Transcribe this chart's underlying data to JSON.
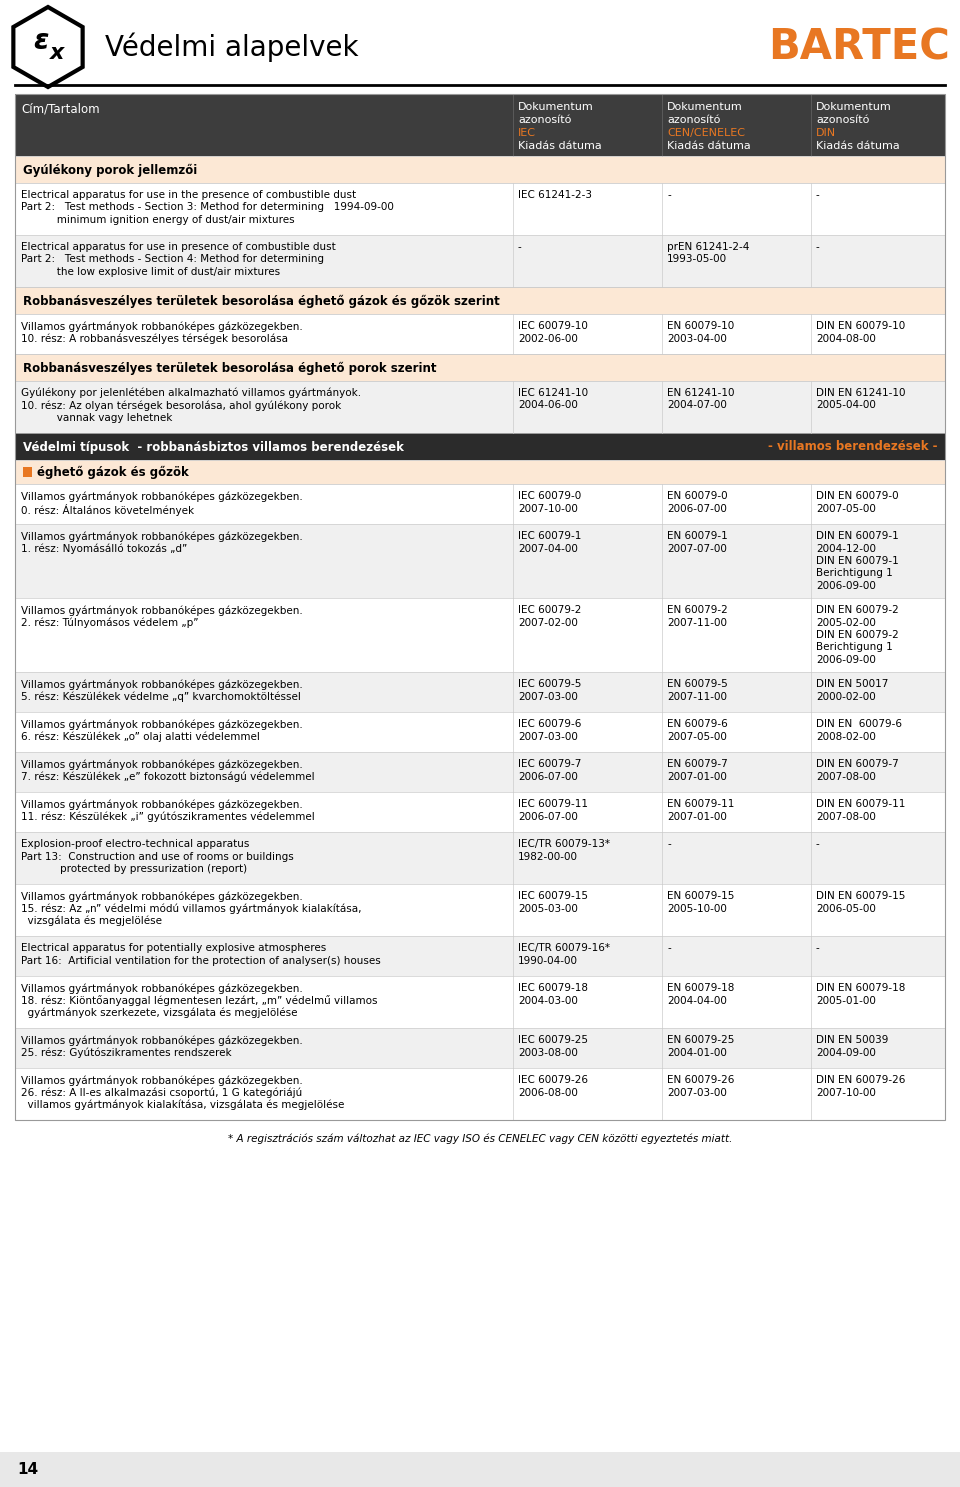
{
  "title_text": "Védelmi alapelvek",
  "bartec_text": "BARTEC",
  "bg_color": "#ffffff",
  "header_bg": "#3d3d3d",
  "section_bg": "#fce8d5",
  "dark_section_bg": "#2b2b2b",
  "orange_color": "#e87722",
  "border_color": "#cccccc",
  "table_header_row": {
    "col1": "Cím/Tartalom",
    "col2": "Dokumentum\nazonosító\nIEC\nKiadás dátuma",
    "col3": "Dokumentum\nazonosító\nCEN/CENELEC\nKiadás dátuma",
    "col4": "Dokumentum\nazonosító\nDIN\nKiadás dátuma"
  },
  "rows": [
    {
      "type": "section",
      "text": "Gyúlékony porok jellemzői"
    },
    {
      "type": "data",
      "col1": "Electrical apparatus for use in the presence of combustible dust\nPart 2:   Test methods - Section 3: Method for determining   1994-09-00\n           minimum ignition energy of dust/air mixtures",
      "col2": "IEC 61241-2-3",
      "col3": "-",
      "col4": "-",
      "bg": "#ffffff"
    },
    {
      "type": "data",
      "col1": "Electrical apparatus for use in presence of combustible dust\nPart 2:   Test methods - Section 4: Method for determining\n           the low explosive limit of dust/air mixtures",
      "col2": "-",
      "col3": "prEN 61241-2-4\n1993-05-00",
      "col4": "-",
      "bg": "#f0f0f0"
    },
    {
      "type": "section",
      "text": "Robbanásveszélyes területek besorolása éghető gázok és gőzök szerint"
    },
    {
      "type": "data",
      "col1": "Villamos gyártmányok robbanóképes gázközegekben.\n10. rész: A robbanásveszélyes térségek besorolása",
      "col2": "IEC 60079-10\n2002-06-00",
      "col3": "EN 60079-10\n2003-04-00",
      "col4": "DIN EN 60079-10\n2004-08-00",
      "bg": "#ffffff"
    },
    {
      "type": "section",
      "text": "Robbanásveszélyes területek besorolása éghető porok szerint"
    },
    {
      "type": "data",
      "col1": "Gyúlékony por jelenlétében alkalmazható villamos gyártmányok.\n10. rész: Az olyan térségek besorolása, ahol gyúlékony porok\n           vannak vagy lehetnek",
      "col2": "IEC 61241-10\n2004-06-00",
      "col3": "EN 61241-10\n2004-07-00",
      "col4": "DIN EN 61241-10\n2005-04-00",
      "bg": "#f0f0f0"
    },
    {
      "type": "dark_section",
      "text_left": "Védelmi típusok  - robbanásbiztos villamos berendezések",
      "text_right": "- villamos berendezések -"
    },
    {
      "type": "orange_section",
      "text": "éghető gázok és gőzök"
    },
    {
      "type": "data",
      "col1": "Villamos gyártmányok robbanóképes gázközegekben.\n0. rész: Általános követelmények",
      "col2": "IEC 60079-0\n2007-10-00",
      "col3": "EN 60079-0\n2006-07-00",
      "col4": "DIN EN 60079-0\n2007-05-00",
      "bg": "#ffffff"
    },
    {
      "type": "data",
      "col1": "Villamos gyártmányok robbanóképes gázközegekben.\n1. rész: Nyomásálló tokozás „d”",
      "col2": "IEC 60079-1\n2007-04-00",
      "col3": "EN 60079-1\n2007-07-00",
      "col4": "DIN EN 60079-1\n2004-12-00\nDIN EN 60079-1\nBerichtigung 1\n2006-09-00",
      "bg": "#f0f0f0"
    },
    {
      "type": "data",
      "col1": "Villamos gyártmányok robbanóképes gázközegekben.\n2. rész: Túlnyomásos védelem „p”",
      "col2": "IEC 60079-2\n2007-02-00",
      "col3": "EN 60079-2\n2007-11-00",
      "col4": "DIN EN 60079-2\n2005-02-00\nDIN EN 60079-2\nBerichtigung 1\n2006-09-00",
      "bg": "#ffffff"
    },
    {
      "type": "data",
      "col1": "Villamos gyártmányok robbanóképes gázközegekben.\n5. rész: Készülékek védelme „q” kvarchomoktöltéssel",
      "col2": "IEC 60079-5\n2007-03-00",
      "col3": "EN 60079-5\n2007-11-00",
      "col4": "DIN EN 50017\n2000-02-00",
      "bg": "#f0f0f0"
    },
    {
      "type": "data",
      "col1": "Villamos gyártmányok robbanóképes gázközegekben.\n6. rész: Készülékek „o” olaj alatti védelemmel",
      "col2": "IEC 60079-6\n2007-03-00",
      "col3": "EN 60079-6\n2007-05-00",
      "col4": "DIN EN  60079-6\n2008-02-00",
      "bg": "#ffffff"
    },
    {
      "type": "data",
      "col1": "Villamos gyártmányok robbanóképes gázközegekben.\n7. rész: Készülékek „e” fokozott biztonságú védelemmel",
      "col2": "IEC 60079-7\n2006-07-00",
      "col3": "EN 60079-7\n2007-01-00",
      "col4": "DIN EN 60079-7\n2007-08-00",
      "bg": "#f0f0f0"
    },
    {
      "type": "data",
      "col1": "Villamos gyártmányok robbanóképes gázközegekben.\n11. rész: Készülékek „i” gyútószikramentes védelemmel",
      "col2": "IEC 60079-11\n2006-07-00",
      "col3": "EN 60079-11\n2007-01-00",
      "col4": "DIN EN 60079-11\n2007-08-00",
      "bg": "#ffffff"
    },
    {
      "type": "data",
      "col1": "Explosion-proof electro-technical apparatus\nPart 13:  Construction and use of rooms or buildings\n            protected by pressurization (report)",
      "col2": "IEC/TR 60079-13*\n1982-00-00",
      "col3": "-",
      "col4": "-",
      "bg": "#f0f0f0"
    },
    {
      "type": "data",
      "col1": "Villamos gyártmányok robbanóképes gázközegekben.\n15. rész: Az „n” védelmi módú villamos gyártmányok kialakítása,\n  vizsgálata és megjelölése",
      "col2": "IEC 60079-15\n2005-03-00",
      "col3": "EN 60079-15\n2005-10-00",
      "col4": "DIN EN 60079-15\n2006-05-00",
      "bg": "#ffffff"
    },
    {
      "type": "data",
      "col1": "Electrical apparatus for potentially explosive atmospheres\nPart 16:  Artificial ventilation for the protection of analyser(s) houses",
      "col2": "IEC/TR 60079-16*\n1990-04-00",
      "col3": "-",
      "col4": "-",
      "bg": "#f0f0f0"
    },
    {
      "type": "data",
      "col1": "Villamos gyártmányok robbanóképes gázközegekben.\n18. rész: Kiöntőanyaggal légmentesen lezárt, „m” védelmű villamos\n  gyártmányok szerkezete, vizsgálata és megjelölése",
      "col2": "IEC 60079-18\n2004-03-00",
      "col3": "EN 60079-18\n2004-04-00",
      "col4": "DIN EN 60079-18\n2005-01-00",
      "bg": "#ffffff"
    },
    {
      "type": "data",
      "col1": "Villamos gyártmányok robbanóképes gázközegekben.\n25. rész: Gyútószikramentes rendszerek",
      "col2": "IEC 60079-25\n2003-08-00",
      "col3": "EN 60079-25\n2004-01-00",
      "col4": "DIN EN 50039\n2004-09-00",
      "bg": "#f0f0f0"
    },
    {
      "type": "data",
      "col1": "Villamos gyártmányok robbanóképes gázközegekben.\n26. rész: A II-es alkalmazási csoportú, 1 G kategóriájú\n  villamos gyártmányok kialakítása, vizsgálata és megjelölése",
      "col2": "IEC 60079-26\n2006-08-00",
      "col3": "EN 60079-26\n2007-03-00",
      "col4": "DIN EN 60079-26\n2007-10-00",
      "bg": "#ffffff"
    }
  ],
  "footer_text": "* A regisztrációs szám változhat az IEC vagy ISO és CENELEC vagy CEN közötti egyeztetés miatt.",
  "page_number": "14"
}
